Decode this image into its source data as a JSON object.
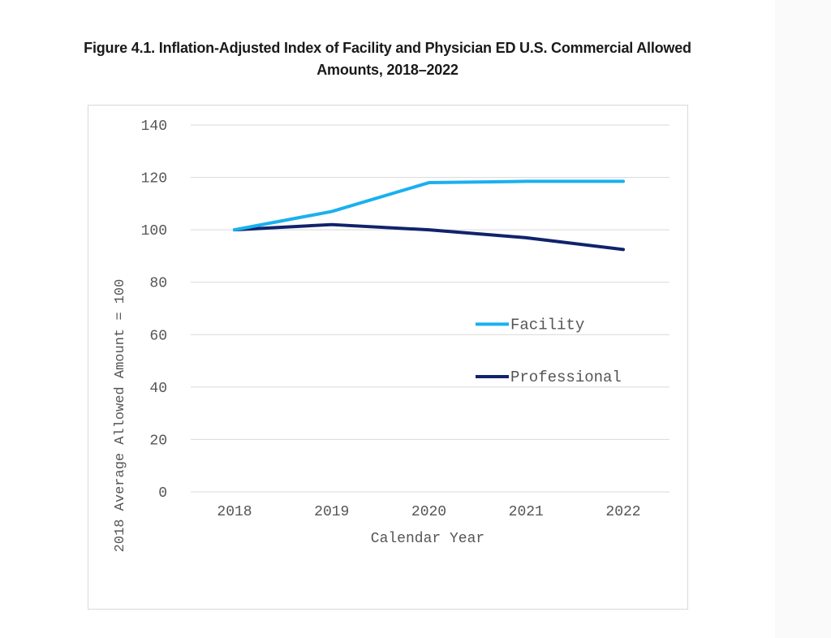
{
  "figure": {
    "title_line1": "Figure 4.1. Inflation-Adjusted Index of Facility and Physician ED U.S. Commercial Allowed",
    "title_line2": "Amounts, 2018–2022"
  },
  "chart_data": {
    "type": "line",
    "title": "Figure 4.1. Inflation-Adjusted Index of Facility and Physician ED U.S. Commercial Allowed Amounts, 2018–2022",
    "xlabel": "Calendar Year",
    "ylabel": "2018 Average Allowed Amount = 100",
    "categories": [
      "2018",
      "2019",
      "2020",
      "2021",
      "2022"
    ],
    "y_ticks": [
      0,
      20,
      40,
      60,
      80,
      100,
      120,
      140
    ],
    "ylim": [
      0,
      140
    ],
    "grid": true,
    "legend_position": "inside-right",
    "series": [
      {
        "name": "Facility",
        "color": "#1ab0ef",
        "values": [
          100,
          107,
          118,
          118.5,
          118.5
        ]
      },
      {
        "name": "Professional",
        "color": "#10236b",
        "values": [
          100,
          102,
          100,
          97,
          92.5
        ]
      }
    ]
  }
}
